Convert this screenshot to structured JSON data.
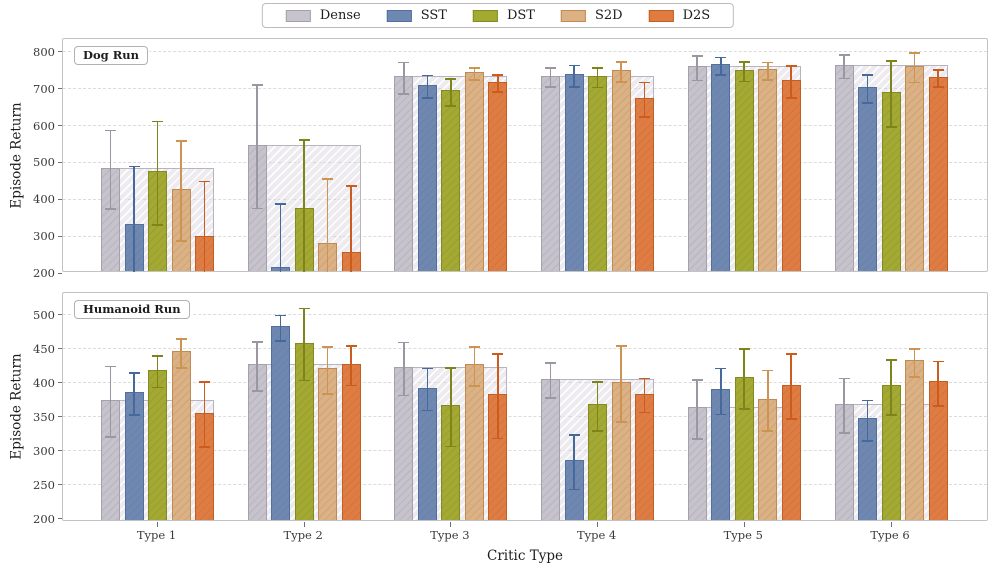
{
  "xlabel": "Critic Type",
  "legend": {
    "items": [
      {
        "label": "Dense",
        "fill": "#c6c3cd",
        "edge": "#a4a1ad"
      },
      {
        "label": "SST",
        "fill": "#6f88b2",
        "edge": "#50709f"
      },
      {
        "label": "DST",
        "fill": "#a3a931",
        "edge": "#848b1e"
      },
      {
        "label": "S2D",
        "fill": "#dcb184",
        "edge": "#c08a52"
      },
      {
        "label": "D2S",
        "fill": "#e07c42",
        "edge": "#c35e21"
      }
    ]
  },
  "chart_data": [
    {
      "type": "bar",
      "title": "Dog Run",
      "ylabel": "Episode Return",
      "ylim": [
        200,
        835
      ],
      "yticks": [
        200,
        300,
        400,
        500,
        600,
        700,
        800
      ],
      "grid": "dashed horizontal",
      "categories": [
        "Type 1",
        "Type 2",
        "Type 3",
        "Type 4",
        "Type 5",
        "Type 6"
      ],
      "dense_span_note": "wide hatched bar behind each group shows the Dense value",
      "series": [
        {
          "name": "Dense",
          "fill": "#c6c3cd",
          "edge": "#a4a1ad",
          "err": "#9a97a3",
          "values": [
            480,
            543,
            728,
            730,
            755,
            760
          ],
          "err_lo": [
            374,
            375,
            686,
            704,
            722,
            728
          ],
          "err_hi": [
            587,
            710,
            771,
            756,
            789,
            792
          ]
        },
        {
          "name": "SST",
          "fill": "#6f88b2",
          "edge": "#50709f",
          "err": "#46699c",
          "values": [
            327,
            212,
            705,
            734,
            761,
            700
          ],
          "err_lo": [
            166,
            37,
            674,
            705,
            737,
            662
          ],
          "err_hi": [
            489,
            387,
            736,
            763,
            785,
            738
          ]
        },
        {
          "name": "DST",
          "fill": "#a3a931",
          "edge": "#848b1e",
          "err": "#7d851a",
          "values": [
            471,
            370,
            690,
            730,
            746,
            686
          ],
          "err_lo": [
            331,
            180,
            654,
            703,
            720,
            596
          ],
          "err_hi": [
            611,
            560,
            726,
            757,
            772,
            776
          ]
        },
        {
          "name": "S2D",
          "fill": "#dcb184",
          "edge": "#c08a52",
          "err": "#cd9350",
          "values": [
            423,
            277,
            740,
            745,
            747,
            757
          ],
          "err_lo": [
            287,
            99,
            723,
            718,
            723,
            717
          ],
          "err_hi": [
            559,
            455,
            757,
            772,
            771,
            797
          ]
        },
        {
          "name": "D2S",
          "fill": "#e07c42",
          "edge": "#c35e21",
          "err": "#cc5c1d",
          "values": [
            296,
            252,
            714,
            670,
            718,
            727
          ],
          "err_lo": [
            144,
            67,
            691,
            623,
            675,
            704
          ],
          "err_hi": [
            448,
            437,
            737,
            717,
            761,
            750
          ]
        }
      ]
    },
    {
      "type": "bar",
      "title": "Humanoid Run",
      "ylabel": "Episode Return",
      "ylim": [
        195,
        532
      ],
      "yticks": [
        200,
        250,
        300,
        350,
        400,
        450,
        500
      ],
      "grid": "dashed horizontal",
      "categories": [
        "Type 1",
        "Type 2",
        "Type 3",
        "Type 4",
        "Type 5",
        "Type 6"
      ],
      "dense_span_note": "wide hatched bar behind each group shows the Dense value",
      "series": [
        {
          "name": "Dense",
          "fill": "#c6c3cd",
          "edge": "#a4a1ad",
          "err": "#9a97a3",
          "values": [
            372,
            424,
            420,
            403,
            361,
            365
          ],
          "err_lo": [
            320,
            388,
            381,
            377,
            317,
            326
          ],
          "err_hi": [
            424,
            460,
            459,
            429,
            404,
            406
          ]
        },
        {
          "name": "SST",
          "fill": "#6f88b2",
          "edge": "#50709f",
          "err": "#46699c",
          "values": [
            383,
            480,
            390,
            283,
            388,
            345
          ],
          "err_lo": [
            352,
            461,
            359,
            243,
            353,
            314
          ],
          "err_hi": [
            414,
            499,
            421,
            323,
            421,
            374
          ]
        },
        {
          "name": "DST",
          "fill": "#a3a931",
          "edge": "#848b1e",
          "err": "#7d851a",
          "values": [
            416,
            456,
            364,
            365,
            406,
            393
          ],
          "err_lo": [
            393,
            403,
            306,
            329,
            361,
            352
          ],
          "err_hi": [
            439,
            509,
            422,
            401,
            450,
            433
          ]
        },
        {
          "name": "S2D",
          "fill": "#dcb184",
          "edge": "#c08a52",
          "err": "#cd9350",
          "values": [
            443,
            418,
            424,
            398,
            373,
            430
          ],
          "err_lo": [
            422,
            383,
            395,
            342,
            329,
            408
          ],
          "err_hi": [
            464,
            453,
            453,
            454,
            418,
            450
          ]
        },
        {
          "name": "D2S",
          "fill": "#e07c42",
          "edge": "#c35e21",
          "err": "#cc5c1d",
          "values": [
            353,
            425,
            380,
            381,
            394,
            399
          ],
          "err_lo": [
            305,
            396,
            318,
            356,
            347,
            366
          ],
          "err_hi": [
            401,
            454,
            442,
            406,
            442,
            431
          ]
        }
      ]
    }
  ]
}
